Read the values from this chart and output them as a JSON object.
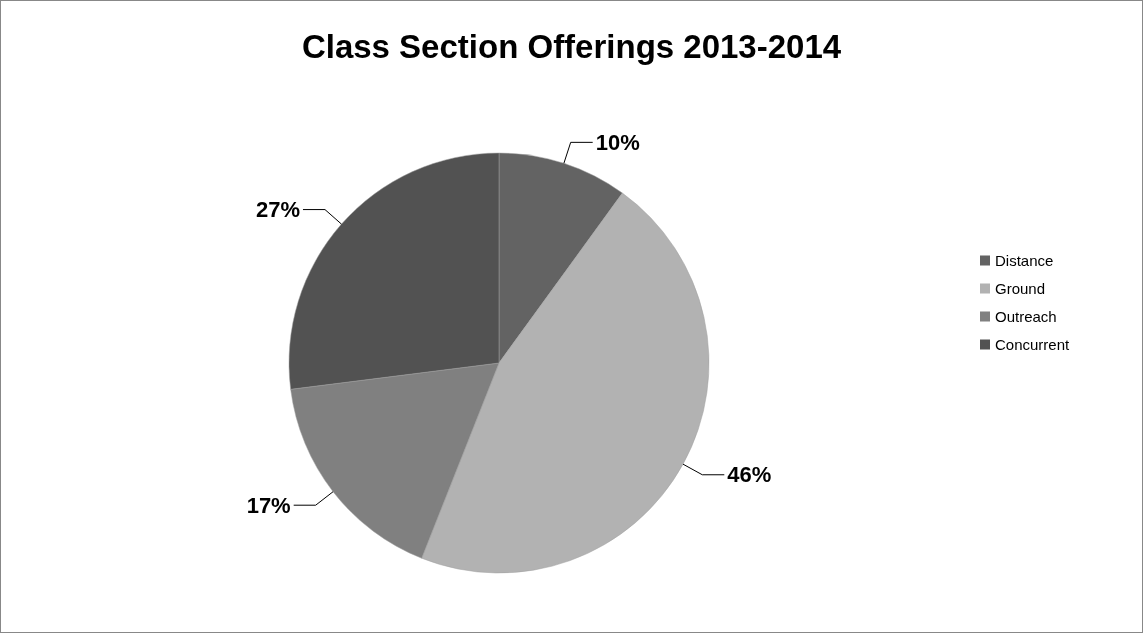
{
  "chart_data": {
    "type": "pie",
    "title": "Class Section Offerings 2013-2014",
    "categories": [
      "Distance",
      "Ground",
      "Outreach",
      "Concurrent"
    ],
    "values": [
      10,
      46,
      17,
      27
    ],
    "colors": [
      "#636363",
      "#b2b2b2",
      "#808080",
      "#525252"
    ],
    "value_labels": [
      "10%",
      "46%",
      "17%",
      "27%"
    ],
    "legend": "right"
  }
}
